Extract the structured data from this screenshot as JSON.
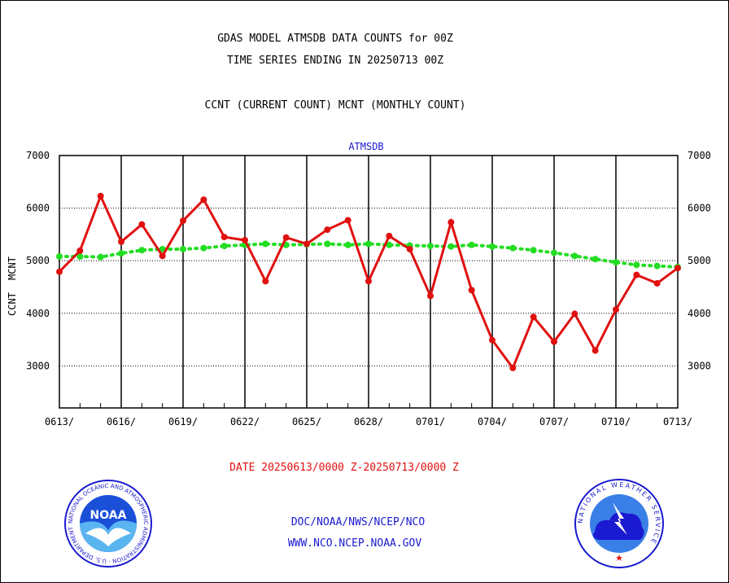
{
  "header": {
    "line1": "GDAS MODEL ATMSDB DATA COUNTS for 00Z",
    "line2": "TIME SERIES ENDING IN 20250713 00Z",
    "line3": "CCNT (CURRENT COUNT) MCNT (MONTHLY COUNT)"
  },
  "footer": {
    "date_range": "DATE 20250613/0000 Z-20250713/0000 Z",
    "org": "DOC/NOAA/NWS/NCEP/NCO",
    "url": "WWW.NCO.NCEP.NOAA.GOV"
  },
  "logos": {
    "left": {
      "text": "NOAA",
      "ring_text": "NATIONAL OCEANIC AND ATMOSPHERIC ADMINISTRATION · U.S. DEPARTMENT OF COMMERCE"
    },
    "right": {
      "ring_text": "NATIONAL WEATHER SERVICE"
    }
  },
  "colors": {
    "ccnt": "#e01010",
    "mcnt": "#22dd22",
    "title_blue": "#1a1ad0"
  },
  "chart_data": {
    "type": "line",
    "title": "ATMSDB",
    "ylabel_ccnt": "CCNT",
    "ylabel_mcnt": "MCNT",
    "ylim": [
      2200,
      7000
    ],
    "yticks": [
      3000,
      4000,
      5000,
      6000,
      7000
    ],
    "xtick_labels": [
      "0613/",
      "0616/",
      "0619/",
      "0622/",
      "0625/",
      "0628/",
      "0701/",
      "0704/",
      "0707/",
      "0710/",
      "0713/"
    ],
    "x_dates": [
      "0613",
      "0614",
      "0615",
      "0616",
      "0617",
      "0618",
      "0619",
      "0620",
      "0621",
      "0622",
      "0623",
      "0624",
      "0625",
      "0626",
      "0627",
      "0628",
      "0629",
      "0630",
      "0701",
      "0702",
      "0703",
      "0704",
      "0705",
      "0706",
      "0707",
      "0708",
      "0709",
      "0710",
      "0711",
      "0712",
      "0713"
    ],
    "grid": true,
    "series": [
      {
        "name": "CCNT",
        "color": "#e01010",
        "values": [
          4790,
          5190,
          6230,
          5360,
          5690,
          5090,
          5760,
          6160,
          5450,
          5390,
          4610,
          5440,
          5320,
          5590,
          5770,
          4610,
          5470,
          5220,
          4330,
          5730,
          4440,
          3490,
          2960,
          3930,
          3460,
          3990,
          3290,
          4070,
          4730,
          4570,
          4860
        ]
      },
      {
        "name": "MCNT",
        "color": "#22dd22",
        "values": [
          5080,
          5080,
          5070,
          5140,
          5200,
          5220,
          5220,
          5240,
          5280,
          5300,
          5320,
          5300,
          5310,
          5320,
          5300,
          5320,
          5300,
          5290,
          5280,
          5270,
          5300,
          5270,
          5240,
          5200,
          5150,
          5090,
          5030,
          4970,
          4920,
          4900,
          4880
        ]
      }
    ]
  }
}
